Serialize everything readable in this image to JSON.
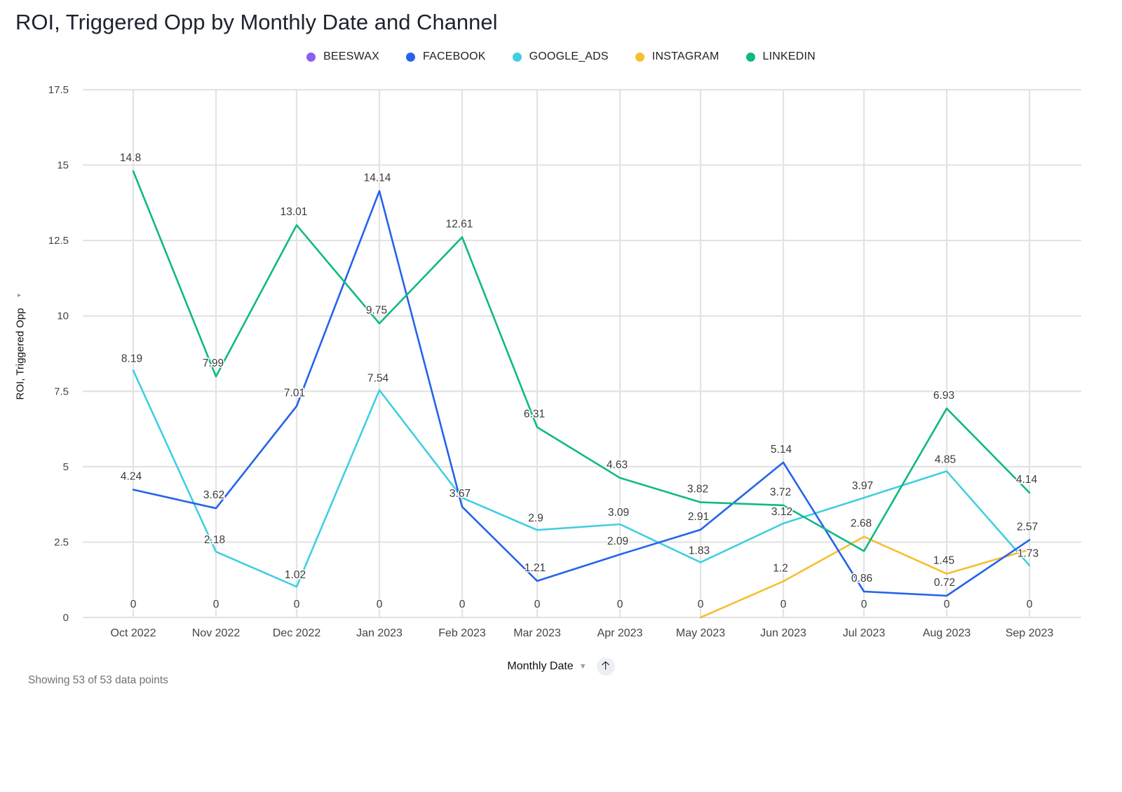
{
  "title": "ROI, Triggered Opp by Monthly Date and Channel",
  "footer_note": "Showing 53 of 53 data points",
  "x_axis": {
    "label": "Monthly Date",
    "sort_icon": "arrow-up-icon",
    "menu_icon": "caret-down-icon"
  },
  "y_axis": {
    "label": "ROI, Triggered Opp",
    "menu_icon": "caret-right-icon"
  },
  "chart_data": {
    "type": "line",
    "title": "ROI, Triggered Opp by Monthly Date and Channel",
    "xlabel": "Monthly Date",
    "ylabel": "ROI, Triggered Opp",
    "ylim": [
      0,
      17.5
    ],
    "yticks": [
      "0",
      "2.5",
      "5",
      "7.5",
      "10",
      "12.5",
      "15",
      "17.5"
    ],
    "grid": true,
    "legend_position": "top-center",
    "categories": [
      "Oct 2022",
      "Nov 2022",
      "Dec 2022",
      "Jan 2023",
      "Feb 2023",
      "Mar 2023",
      "Apr 2023",
      "May 2023",
      "Jun 2023",
      "Jul 2023",
      "Aug 2023",
      "Sep 2023"
    ],
    "series": [
      {
        "name": "BEESWAX",
        "color": "#8b5cf6",
        "values": [
          0,
          0,
          0,
          0,
          0,
          0,
          0,
          0,
          0,
          0,
          0,
          0
        ],
        "labels": [
          "0",
          "0",
          "0",
          "0",
          "0",
          "0",
          "0",
          "0",
          "0",
          "0",
          "0",
          "0"
        ]
      },
      {
        "name": "FACEBOOK",
        "color": "#2563eb",
        "values": [
          4.24,
          3.62,
          7.01,
          14.14,
          3.67,
          1.21,
          2.09,
          2.91,
          5.14,
          0.86,
          0.72,
          2.57
        ],
        "labels": [
          "4.24",
          "3.62",
          "7.01",
          "14.14",
          "3.67",
          "1.21",
          "2.09",
          "2.91",
          "5.14",
          "0.86",
          "0.72",
          "2.57"
        ]
      },
      {
        "name": "GOOGLE_ADS",
        "color": "#41cfe0",
        "values": [
          8.19,
          2.18,
          1.02,
          7.54,
          3.97,
          2.9,
          3.09,
          1.83,
          3.12,
          3.97,
          4.85,
          1.73
        ],
        "labels": [
          "8.19",
          "2.18",
          "1.02",
          "7.54",
          "",
          "2.9",
          "3.09",
          "1.83",
          "3.12",
          "3.97",
          "4.85",
          "1.73"
        ]
      },
      {
        "name": "INSTAGRAM",
        "color": "#f7bf30",
        "values": [
          null,
          null,
          null,
          null,
          null,
          null,
          null,
          0,
          1.2,
          2.68,
          1.45,
          2.25
        ],
        "labels": [
          "",
          "",
          "",
          "",
          "",
          "",
          "",
          "",
          "1.2",
          "2.68",
          "1.45",
          ""
        ]
      },
      {
        "name": "LINKEDIN",
        "color": "#10b981",
        "values": [
          14.8,
          7.99,
          13.01,
          9.75,
          12.61,
          6.31,
          4.63,
          3.82,
          3.72,
          2.2,
          6.93,
          4.14
        ],
        "labels": [
          "14.8",
          "7.99",
          "13.01",
          "9.75",
          "12.61",
          "6.31",
          "4.63",
          "3.82",
          "3.72",
          "",
          "6.93",
          "4.14"
        ]
      }
    ]
  }
}
